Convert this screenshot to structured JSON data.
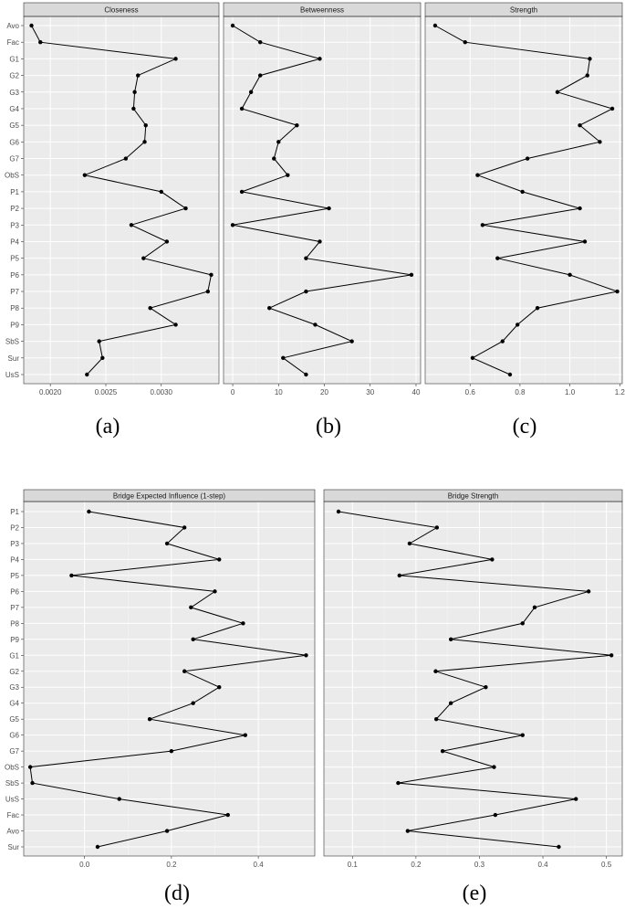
{
  "chart_data": [
    {
      "type": "line",
      "title": "Closeness",
      "caption": "(a)",
      "categories": [
        "Avo",
        "Fac",
        "G1",
        "G2",
        "G3",
        "G4",
        "G5",
        "G6",
        "G7",
        "ObS",
        "P1",
        "P2",
        "P3",
        "P4",
        "P5",
        "P6",
        "P7",
        "P8",
        "P9",
        "SbS",
        "Sur",
        "UsS"
      ],
      "values": [
        0.00183,
        0.00191,
        0.00313,
        0.00279,
        0.00276,
        0.00275,
        0.00286,
        0.00285,
        0.00268,
        0.00231,
        0.003,
        0.00322,
        0.00273,
        0.00305,
        0.00284,
        0.00345,
        0.00342,
        0.0029,
        0.00313,
        0.00244,
        0.00247,
        0.00233
      ],
      "xlim": [
        0.00176,
        0.00352
      ],
      "xticks": [
        0.002,
        0.0025,
        0.003
      ],
      "xtick_labels": [
        "0.0020",
        "0.0025",
        "0.0030"
      ],
      "grid": true
    },
    {
      "type": "line",
      "title": "Betweenness",
      "caption": "(b)",
      "categories": [
        "Avo",
        "Fac",
        "G1",
        "G2",
        "G3",
        "G4",
        "G5",
        "G6",
        "G7",
        "ObS",
        "P1",
        "P2",
        "P3",
        "P4",
        "P5",
        "P6",
        "P7",
        "P8",
        "P9",
        "SbS",
        "Sur",
        "UsS"
      ],
      "values": [
        0,
        6,
        19,
        6,
        4,
        2,
        14,
        10,
        9,
        12,
        2,
        21,
        0,
        19,
        16,
        39,
        16,
        8,
        18,
        26,
        11,
        16
      ],
      "xlim": [
        -2,
        41
      ],
      "xticks": [
        0,
        10,
        20,
        30,
        40
      ],
      "xtick_labels": [
        "0",
        "10",
        "20",
        "30",
        "40"
      ],
      "grid": true
    },
    {
      "type": "line",
      "title": "Strength",
      "caption": "(c)",
      "categories": [
        "Avo",
        "Fac",
        "G1",
        "G2",
        "G3",
        "G4",
        "G5",
        "G6",
        "G7",
        "ObS",
        "P1",
        "P2",
        "P3",
        "P4",
        "P5",
        "P6",
        "P7",
        "P8",
        "P9",
        "SbS",
        "Sur",
        "UsS"
      ],
      "values": [
        0.46,
        0.58,
        1.08,
        1.07,
        0.95,
        1.17,
        1.04,
        1.12,
        0.83,
        0.63,
        0.81,
        1.04,
        0.65,
        1.06,
        0.71,
        1.0,
        1.19,
        0.87,
        0.79,
        0.73,
        0.61,
        0.76
      ],
      "xlim": [
        0.42,
        1.21
      ],
      "xticks": [
        0.6,
        0.8,
        1.0,
        1.2
      ],
      "xtick_labels": [
        "0.6",
        "0.8",
        "1.0",
        "1.2"
      ],
      "grid": true
    },
    {
      "type": "line",
      "title": "Bridge Expected Influence (1-step)",
      "caption": "(d)",
      "categories": [
        "Sur",
        "Avo",
        "Fac",
        "UsS",
        "SbS",
        "ObS",
        "G7",
        "G6",
        "G5",
        "G4",
        "G3",
        "G2",
        "G1",
        "P9",
        "P8",
        "P7",
        "P6",
        "P5",
        "P4",
        "P3",
        "P2",
        "P1"
      ],
      "values": [
        0.03,
        0.19,
        0.33,
        0.08,
        -0.12,
        -0.125,
        0.2,
        0.37,
        0.15,
        0.25,
        0.31,
        0.23,
        0.51,
        0.25,
        0.365,
        0.245,
        0.3,
        -0.03,
        0.31,
        0.19,
        0.23,
        0.01
      ],
      "xlim": [
        -0.14,
        0.53
      ],
      "xticks": [
        0.0,
        0.2,
        0.4
      ],
      "xtick_labels": [
        "0.0",
        "0.2",
        "0.4"
      ],
      "grid": true
    },
    {
      "type": "line",
      "title": "Bridge Strength",
      "caption": "(e)",
      "categories": [
        "Sur",
        "Avo",
        "Fac",
        "UsS",
        "SbS",
        "ObS",
        "G7",
        "G6",
        "G5",
        "G4",
        "G3",
        "G2",
        "G1",
        "P9",
        "P8",
        "P7",
        "P6",
        "P5",
        "P4",
        "P3",
        "P2",
        "P1"
      ],
      "values": [
        0.425,
        0.187,
        0.325,
        0.452,
        0.172,
        0.323,
        0.242,
        0.368,
        0.232,
        0.255,
        0.31,
        0.231,
        0.508,
        0.255,
        0.368,
        0.387,
        0.472,
        0.174,
        0.32,
        0.19,
        0.233,
        0.078
      ],
      "xlim": [
        0.055,
        0.525
      ],
      "xticks": [
        0.1,
        0.2,
        0.3,
        0.4,
        0.5
      ],
      "xtick_labels": [
        "0.1",
        "0.2",
        "0.3",
        "0.4",
        "0.5"
      ],
      "grid": true
    }
  ]
}
